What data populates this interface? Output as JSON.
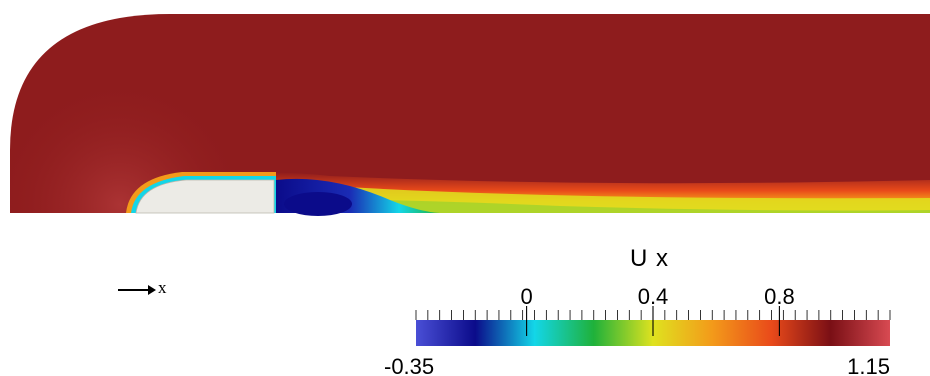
{
  "viewport": {
    "axis_label": "x",
    "icons": [
      "arrow-right-icon"
    ]
  },
  "colorbar": {
    "title": "U x",
    "min_label": "-0.35",
    "max_label": "1.15",
    "min": -0.35,
    "max": 1.15,
    "tick_labels": [
      "0",
      "0.4",
      "0.8"
    ],
    "tick_values": [
      0,
      0.4,
      0.8
    ],
    "colors": [
      "#4a4fd6",
      "#0b0b8a",
      "#13d6e8",
      "#1fb13a",
      "#dfe21f",
      "#f39a1a",
      "#e94a1a",
      "#7a0f15",
      "#d84a52"
    ]
  },
  "scene": {
    "background": "#ffffff",
    "free_stream_color": "#8e1c1d",
    "body_color": "#ecebe6"
  }
}
